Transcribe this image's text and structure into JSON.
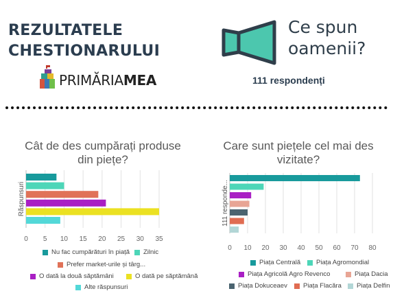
{
  "header": {
    "title_line1": "REZULTATELE",
    "title_line2": "CHESTIONARULUI",
    "logo_regular": "PRIMĂRIA",
    "logo_bold": "MEA",
    "quote_line1": "Ce spun",
    "quote_line2": "oamenii?",
    "respondents": "111 respondenți"
  },
  "chart_data": [
    {
      "type": "bar",
      "orientation": "horizontal",
      "title_line1": "Cât de des cumpărați produse",
      "title_line2": "din piețe?",
      "ylabel": "Răspunsuri",
      "xlim": [
        0,
        35
      ],
      "xticks": [
        "0",
        "5",
        "10",
        "15",
        "20",
        "25",
        "30",
        "35"
      ],
      "grid": true,
      "legend_position": "bottom",
      "series": [
        {
          "name": "Nu fac cumpărături în piață",
          "value": 8,
          "color": "#189a9c"
        },
        {
          "name": "Zilnic",
          "value": 10,
          "color": "#4dd6b8"
        },
        {
          "name": "Prefer market-urile și târg...",
          "value": 19,
          "color": "#e07258"
        },
        {
          "name": "O dată la două săptămâni",
          "value": 21,
          "color": "#a91fc4"
        },
        {
          "name": "O dată pe săptămână",
          "value": 35,
          "color": "#ebe122"
        },
        {
          "name": "Alte răspunsuri",
          "value": 9,
          "color": "#53d8d8"
        }
      ]
    },
    {
      "type": "bar",
      "orientation": "horizontal",
      "title_line1": "Care sunt piețele cel mai des",
      "title_line2": "vizitate?",
      "ylabel": "111 responde...",
      "xlim": [
        0,
        80
      ],
      "xticks": [
        "0",
        "10",
        "20",
        "30",
        "40",
        "50",
        "60",
        "70",
        "80"
      ],
      "grid": true,
      "legend_position": "bottom",
      "series": [
        {
          "name": "Piața Centrală",
          "value": 73,
          "color": "#189a9c"
        },
        {
          "name": "Piața Agromondial",
          "value": 19,
          "color": "#4dd6b8"
        },
        {
          "name": "Piața Agricolă Agro Revenco",
          "value": 12,
          "color": "#a91fc4"
        },
        {
          "name": "Piața Dacia",
          "value": 11,
          "color": "#e8a595"
        },
        {
          "name": "Piața Dokuceaev",
          "value": 10,
          "color": "#4b6470"
        },
        {
          "name": "Piața Flacăra",
          "value": 8,
          "color": "#e06c52"
        },
        {
          "name": "Piața Delfin",
          "value": 5,
          "color": "#b2d6d6"
        }
      ]
    }
  ]
}
